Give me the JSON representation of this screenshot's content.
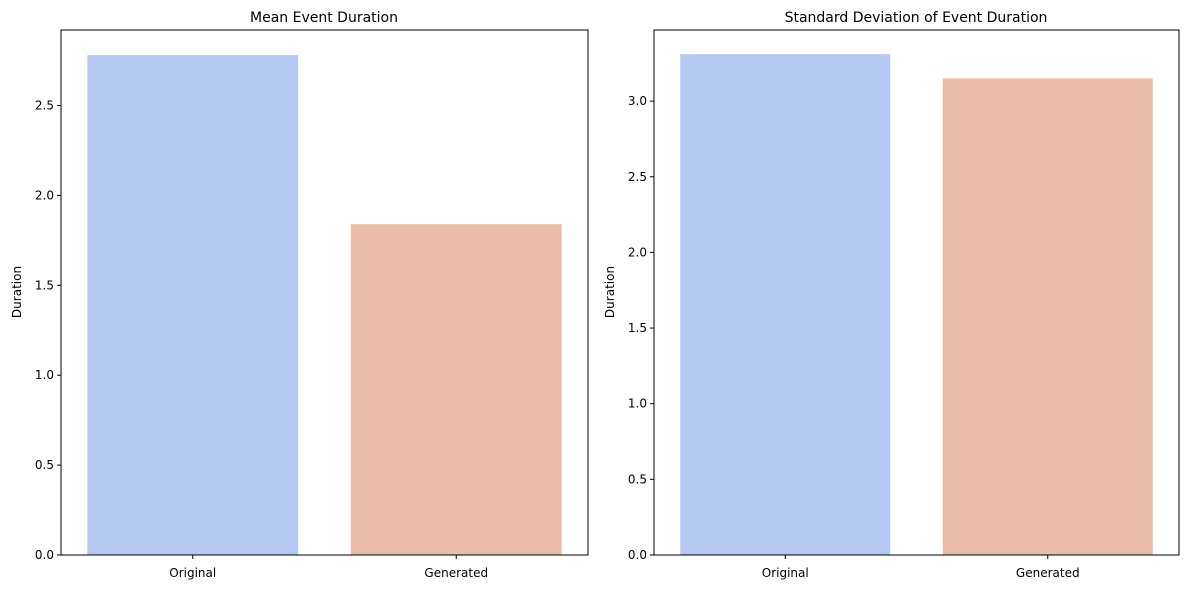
{
  "chart_data": [
    {
      "type": "bar",
      "title": "Mean Event Duration",
      "xlabel": "",
      "ylabel": "Duration",
      "categories": [
        "Original",
        "Generated"
      ],
      "values": [
        2.78,
        1.84
      ],
      "colors": [
        "#b4c8f1",
        "#ebbca7"
      ],
      "ylim": [
        0,
        2.92
      ],
      "yticks": [
        0.0,
        0.5,
        1.0,
        1.5,
        2.0,
        2.5
      ],
      "ytick_labels": [
        "0.0",
        "0.5",
        "1.0",
        "1.5",
        "2.0",
        "2.5"
      ],
      "grid": false
    },
    {
      "type": "bar",
      "title": "Standard Deviation of Event Duration",
      "xlabel": "",
      "ylabel": "Duration",
      "categories": [
        "Original",
        "Generated"
      ],
      "values": [
        3.31,
        3.15
      ],
      "colors": [
        "#b4c8f1",
        "#ebbca7"
      ],
      "ylim": [
        0,
        3.47
      ],
      "yticks": [
        0.0,
        0.5,
        1.0,
        1.5,
        2.0,
        2.5,
        3.0
      ],
      "ytick_labels": [
        "0.0",
        "0.5",
        "1.0",
        "1.5",
        "2.0",
        "2.5",
        "3.0"
      ],
      "grid": false
    }
  ]
}
